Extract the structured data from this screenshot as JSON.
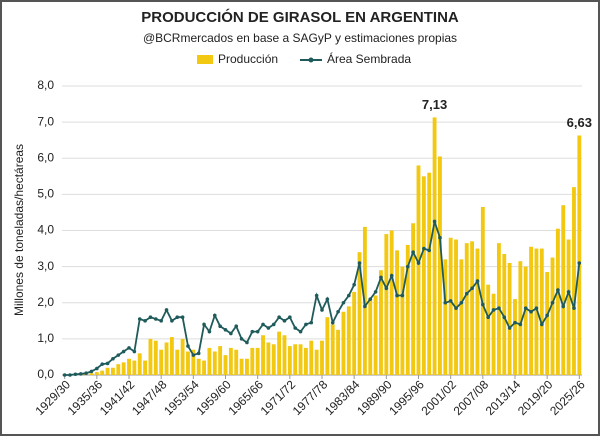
{
  "chart_data": {
    "type": "bar_line",
    "title": "PRODUCCIÓN DE GIRASOL EN ARGENTINA",
    "subtitle": "@BCRmercados en base a SAGyP y estimaciones propias",
    "y_label": "Millones de toneladas/hectáreas",
    "categories": [
      "1929/30",
      null,
      null,
      null,
      null,
      null,
      "1935/36",
      null,
      null,
      null,
      null,
      null,
      "1941/42",
      null,
      null,
      null,
      null,
      null,
      "1947/48",
      null,
      null,
      null,
      null,
      null,
      "1953/54",
      null,
      null,
      null,
      null,
      null,
      "1959/60",
      null,
      null,
      null,
      null,
      null,
      "1965/66",
      null,
      null,
      null,
      null,
      null,
      "1971/72",
      null,
      null,
      null,
      null,
      null,
      "1977/78",
      null,
      null,
      null,
      null,
      null,
      "1983/84",
      null,
      null,
      null,
      null,
      null,
      "1989/90",
      null,
      null,
      null,
      null,
      null,
      "1995/96",
      null,
      null,
      null,
      null,
      null,
      "2001/02",
      null,
      null,
      null,
      null,
      null,
      "2007/08",
      null,
      null,
      null,
      null,
      null,
      "2013/14",
      null,
      null,
      null,
      null,
      null,
      "2019/20",
      null,
      null,
      null,
      null,
      null,
      "2025/26"
    ],
    "series": [
      {
        "name": "Producción",
        "type": "bar",
        "color": "#f2c811",
        "values": [
          0.01,
          0.01,
          0.02,
          0.02,
          0.03,
          0.05,
          0.08,
          0.12,
          0.2,
          0.2,
          0.3,
          0.35,
          0.45,
          0.4,
          0.6,
          0.4,
          1.0,
          0.95,
          0.7,
          0.9,
          1.05,
          0.7,
          1.0,
          0.65,
          0.7,
          0.45,
          0.4,
          0.75,
          0.65,
          0.8,
          0.55,
          0.75,
          0.7,
          0.45,
          0.45,
          0.75,
          0.75,
          1.1,
          0.9,
          0.85,
          1.2,
          1.1,
          0.8,
          0.85,
          0.85,
          0.75,
          0.95,
          0.7,
          0.95,
          1.6,
          1.4,
          1.25,
          1.75,
          1.9,
          2.3,
          3.4,
          4.1,
          2.1,
          2.2,
          2.9,
          3.9,
          4.0,
          3.45,
          3.0,
          3.6,
          4.2,
          5.8,
          5.5,
          5.6,
          7.13,
          6.05,
          3.2,
          3.8,
          3.75,
          3.2,
          3.65,
          3.7,
          3.5,
          4.65,
          2.5,
          2.25,
          3.65,
          3.35,
          3.1,
          2.1,
          3.15,
          3.0,
          3.55,
          3.5,
          3.5,
          2.85,
          3.25,
          4.05,
          4.7,
          3.75,
          5.2,
          6.63
        ],
        "value_labels": [
          null,
          null,
          null,
          null,
          null,
          null,
          null,
          null,
          null,
          null,
          null,
          null,
          null,
          null,
          null,
          null,
          null,
          null,
          null,
          null,
          null,
          null,
          null,
          null,
          null,
          null,
          null,
          null,
          null,
          null,
          null,
          null,
          null,
          null,
          null,
          null,
          null,
          null,
          null,
          null,
          null,
          null,
          null,
          null,
          null,
          null,
          null,
          null,
          null,
          null,
          null,
          null,
          null,
          null,
          null,
          null,
          null,
          null,
          null,
          null,
          null,
          null,
          null,
          null,
          null,
          null,
          null,
          null,
          null,
          "7,13",
          null,
          null,
          null,
          null,
          null,
          null,
          null,
          null,
          null,
          null,
          null,
          null,
          null,
          null,
          null,
          null,
          null,
          null,
          null,
          null,
          null,
          null,
          null,
          null,
          null,
          null,
          "6,63"
        ]
      },
      {
        "name": "Área Sembrada",
        "type": "line",
        "color": "#1f5b5b",
        "values": [
          0.0,
          0.0,
          0.02,
          0.03,
          0.05,
          0.1,
          0.18,
          0.3,
          0.32,
          0.45,
          0.55,
          0.65,
          0.75,
          0.65,
          1.55,
          1.5,
          1.6,
          1.55,
          1.5,
          1.8,
          1.5,
          1.6,
          1.6,
          0.8,
          0.55,
          0.6,
          1.4,
          1.2,
          1.65,
          1.35,
          1.25,
          1.15,
          1.35,
          1.0,
          0.9,
          1.2,
          1.2,
          1.4,
          1.3,
          1.4,
          1.6,
          1.5,
          1.6,
          1.3,
          1.2,
          1.4,
          1.45,
          2.2,
          1.8,
          2.1,
          1.45,
          1.75,
          2.0,
          2.2,
          2.5,
          3.1,
          1.9,
          2.1,
          2.3,
          2.7,
          2.4,
          2.75,
          2.2,
          2.2,
          3.0,
          3.4,
          3.1,
          3.5,
          3.45,
          4.25,
          3.8,
          2.0,
          2.05,
          1.85,
          2.0,
          2.25,
          2.4,
          2.6,
          1.95,
          1.6,
          1.8,
          1.85,
          1.6,
          1.3,
          1.45,
          1.4,
          1.85,
          1.75,
          1.85,
          1.4,
          1.65,
          2.0,
          2.35,
          1.9,
          2.3,
          1.85,
          3.1
        ]
      }
    ],
    "ylim": [
      0,
      8
    ],
    "yticks": [
      {
        "value": 0,
        "label": "0,0"
      },
      {
        "value": 1,
        "label": "1,0"
      },
      {
        "value": 2,
        "label": "2,0"
      },
      {
        "value": 3,
        "label": "3,0"
      },
      {
        "value": 4,
        "label": "4,0"
      },
      {
        "value": 5,
        "label": "5,0"
      },
      {
        "value": 6,
        "label": "6,0"
      },
      {
        "value": 7,
        "label": "7,0"
      },
      {
        "value": 8,
        "label": "8,0"
      }
    ],
    "grid": true,
    "legend": "top"
  }
}
